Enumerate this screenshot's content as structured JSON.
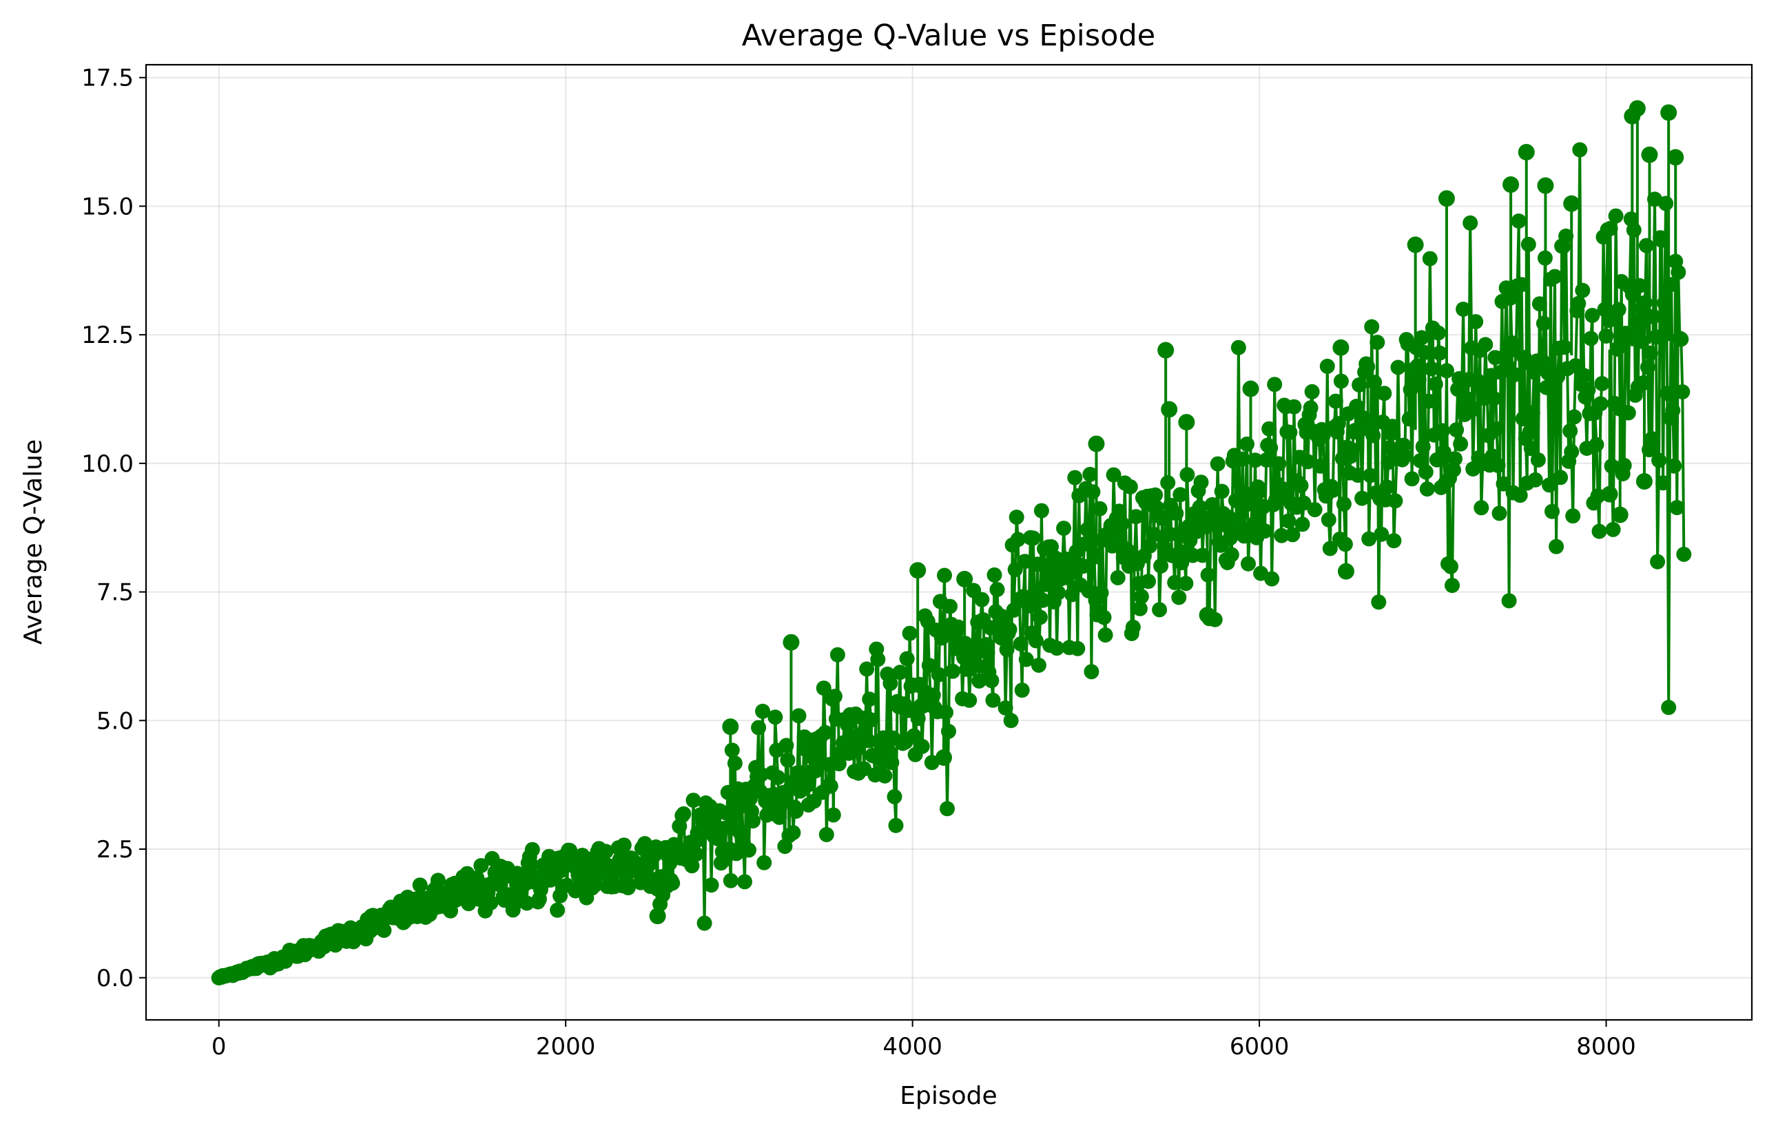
{
  "chart_data": {
    "type": "line",
    "title": "Average Q-Value vs Episode",
    "xlabel": "Episode",
    "ylabel": "Average Q-Value",
    "xlim": [
      -420,
      8840
    ],
    "ylim": [
      -0.82,
      17.75
    ],
    "xticks": [
      0,
      2000,
      4000,
      6000,
      8000
    ],
    "yticks": [
      0.0,
      2.5,
      5.0,
      7.5,
      10.0,
      12.5,
      15.0,
      17.5
    ],
    "xtick_labels": [
      "0",
      "2000",
      "4000",
      "6000",
      "8000"
    ],
    "ytick_labels": [
      "0.0",
      "2.5",
      "5.0",
      "7.5",
      "10.0",
      "12.5",
      "15.0",
      "17.5"
    ],
    "grid": true,
    "legend": "none",
    "color": "#008000",
    "marker": "circle",
    "series": [
      {
        "x": [
          0,
          100,
          200,
          300,
          400,
          500,
          600,
          700,
          800,
          900,
          1000,
          1100,
          1200,
          1300,
          1400,
          1500,
          1600,
          1700,
          1800,
          1900,
          2000,
          2100,
          2200,
          2300,
          2400,
          2500,
          2600,
          2700,
          2800,
          2900,
          3000,
          3100,
          3200,
          3300,
          3400,
          3500,
          3600,
          3700,
          3800,
          3900,
          4000,
          4100,
          4200,
          4300,
          4400,
          4500,
          4600,
          4700,
          4800,
          4900,
          5000,
          5100,
          5200,
          5300,
          5400,
          5500,
          5600,
          5700,
          5800,
          5900,
          6000,
          6100,
          6200,
          6300,
          6400,
          6500,
          6600,
          6700,
          6800,
          6900,
          7000,
          7100,
          7200,
          7300,
          7400,
          7500,
          7600,
          7700,
          7800,
          7900,
          8000,
          8100,
          8200,
          8300,
          8400,
          8450
        ],
        "y": [
          0.0,
          0.1,
          0.2,
          0.3,
          0.42,
          0.55,
          0.68,
          0.8,
          0.92,
          1.05,
          1.18,
          1.3,
          1.42,
          1.52,
          1.62,
          1.7,
          1.78,
          1.85,
          1.92,
          1.98,
          2.02,
          2.06,
          2.1,
          2.15,
          2.2,
          2.25,
          2.35,
          2.55,
          2.8,
          3.0,
          3.2,
          3.4,
          3.6,
          3.8,
          4.0,
          4.2,
          4.4,
          4.65,
          4.9,
          5.15,
          5.45,
          5.75,
          6.0,
          6.3,
          6.6,
          6.9,
          7.2,
          7.45,
          7.65,
          7.8,
          7.95,
          8.1,
          8.25,
          8.4,
          8.5,
          8.6,
          8.7,
          8.85,
          9.0,
          9.15,
          9.3,
          9.45,
          9.6,
          9.75,
          9.9,
          10.05,
          10.2,
          10.35,
          10.5,
          10.65,
          10.85,
          11.05,
          11.25,
          11.45,
          11.6,
          11.75,
          11.9,
          12.0,
          12.1,
          12.15,
          12.2,
          12.25,
          12.3,
          12.35,
          12.4,
          12.4
        ],
        "noise_sd": [
          0.01,
          0.02,
          0.03,
          0.04,
          0.05,
          0.06,
          0.07,
          0.08,
          0.1,
          0.12,
          0.14,
          0.16,
          0.18,
          0.2,
          0.22,
          0.24,
          0.26,
          0.28,
          0.3,
          0.3,
          0.3,
          0.3,
          0.32,
          0.34,
          0.36,
          0.38,
          0.42,
          0.46,
          0.5,
          0.55,
          0.6,
          0.62,
          0.64,
          0.66,
          0.68,
          0.7,
          0.7,
          0.72,
          0.74,
          0.76,
          0.78,
          0.8,
          0.8,
          0.8,
          0.8,
          0.8,
          0.8,
          0.8,
          0.8,
          0.8,
          0.8,
          0.8,
          0.82,
          0.84,
          0.86,
          0.88,
          0.9,
          0.92,
          0.94,
          0.96,
          0.98,
          1.0,
          1.02,
          1.04,
          1.06,
          1.08,
          1.1,
          1.15,
          1.2,
          1.25,
          1.3,
          1.35,
          1.4,
          1.45,
          1.5,
          1.55,
          1.6,
          1.62,
          1.65,
          1.68,
          1.7,
          1.72,
          1.74,
          1.76,
          1.78,
          1.8
        ]
      }
    ],
    "annotations_outliers": [
      {
        "x": 2950,
        "y": 4.88
      },
      {
        "x": 3300,
        "y": 6.52
      },
      {
        "x": 4030,
        "y": 7.92
      },
      {
        "x": 4300,
        "y": 7.75
      },
      {
        "x": 5060,
        "y": 10.38
      },
      {
        "x": 5460,
        "y": 12.2
      },
      {
        "x": 5480,
        "y": 11.05
      },
      {
        "x": 5580,
        "y": 10.8
      },
      {
        "x": 5950,
        "y": 11.45
      },
      {
        "x": 6470,
        "y": 12.25
      },
      {
        "x": 6900,
        "y": 14.25
      },
      {
        "x": 7080,
        "y": 15.15
      },
      {
        "x": 7450,
        "y": 15.42
      },
      {
        "x": 7540,
        "y": 16.05
      },
      {
        "x": 7650,
        "y": 15.4
      },
      {
        "x": 7800,
        "y": 15.05
      },
      {
        "x": 8150,
        "y": 16.75
      },
      {
        "x": 8180,
        "y": 16.9
      },
      {
        "x": 8360,
        "y": 16.82
      },
      {
        "x": 8250,
        "y": 16.0
      },
      {
        "x": 8400,
        "y": 15.95
      },
      {
        "x": 8080,
        "y": 9.0
      },
      {
        "x": 8020,
        "y": 9.4
      },
      {
        "x": 8220,
        "y": 9.65
      },
      {
        "x": 4180,
        "y": 4.28
      },
      {
        "x": 2530,
        "y": 1.2
      },
      {
        "x": 6500,
        "y": 7.9
      },
      {
        "x": 5700,
        "y": 7.05
      }
    ]
  }
}
